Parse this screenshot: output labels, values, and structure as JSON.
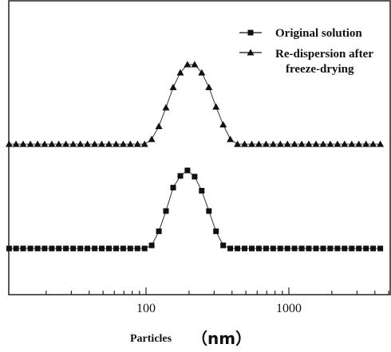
{
  "chart_data": {
    "type": "line",
    "xscale": "log",
    "xlim": [
      10,
      5000
    ],
    "x_ticks": [
      100,
      1000
    ],
    "x_tick_labels": [
      "100",
      "1000"
    ],
    "xlabel": "Particles",
    "xlabel_unit": "（nm）",
    "ylabel": "",
    "legend_position": "top-right",
    "grid": false,
    "series": [
      {
        "name": "Original solution",
        "marker": "square",
        "x": [
          11,
          12.3,
          13.8,
          15.5,
          17.4,
          19.5,
          21.9,
          24.5,
          27.5,
          30.9,
          34.7,
          38.9,
          43.7,
          49,
          55,
          61.7,
          69.2,
          77.6,
          87.1,
          97.7,
          109.6,
          123,
          138,
          154.9,
          173.8,
          195,
          218.8,
          245.5,
          275.4,
          309,
          346.7,
          389,
          436.5,
          489.8,
          549.5,
          616.6,
          691.8,
          776.2,
          871,
          977.2,
          1096,
          1230,
          1380,
          1549,
          1738,
          1950,
          2188,
          2455,
          2754,
          3090,
          3467,
          3890,
          4365
        ],
        "values": [
          0,
          0,
          0,
          0,
          0,
          0,
          0,
          0,
          0,
          0,
          0,
          0,
          0,
          0,
          0,
          0,
          0,
          0,
          0,
          0,
          0.04,
          0.22,
          0.48,
          0.78,
          0.93,
          1.0,
          0.92,
          0.74,
          0.48,
          0.22,
          0.04,
          0,
          0,
          0,
          0,
          0,
          0,
          0,
          0,
          0,
          0,
          0,
          0,
          0,
          0,
          0,
          0,
          0,
          0,
          0,
          0,
          0,
          0
        ]
      },
      {
        "name": "Re-dispersion after freeze-drying",
        "marker": "triangle",
        "x": [
          11,
          12.3,
          13.8,
          15.5,
          17.4,
          19.5,
          21.9,
          24.5,
          27.5,
          30.9,
          34.7,
          38.9,
          43.7,
          49,
          55,
          61.7,
          69.2,
          77.6,
          87.1,
          97.7,
          109.6,
          123,
          138,
          154.9,
          173.8,
          195,
          218.8,
          245.5,
          275.4,
          309,
          346.7,
          389,
          436.5,
          489.8,
          549.5,
          616.6,
          691.8,
          776.2,
          871,
          977.2,
          1096,
          1230,
          1380,
          1549,
          1738,
          1950,
          2188,
          2455,
          2754,
          3090,
          3467,
          3890,
          4365
        ],
        "values": [
          0,
          0,
          0,
          0,
          0,
          0,
          0,
          0,
          0,
          0,
          0,
          0,
          0,
          0,
          0,
          0,
          0,
          0,
          0,
          0,
          0.06,
          0.22,
          0.45,
          0.7,
          0.88,
          0.98,
          0.98,
          0.88,
          0.7,
          0.46,
          0.24,
          0.06,
          0,
          0,
          0,
          0,
          0,
          0,
          0,
          0,
          0,
          0,
          0,
          0,
          0,
          0,
          0,
          0,
          0,
          0,
          0,
          0,
          0
        ]
      }
    ]
  }
}
